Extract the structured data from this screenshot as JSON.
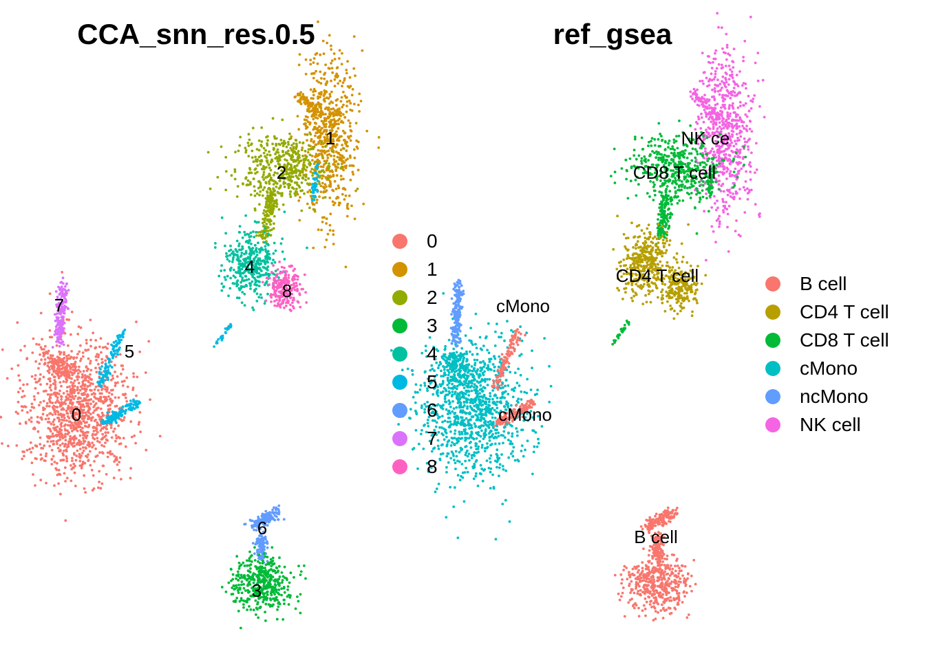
{
  "panels": [
    {
      "title": "CCA_snn_res.0.5"
    },
    {
      "title": "ref_gsea"
    }
  ],
  "legend_left": {
    "items": [
      {
        "label": "0",
        "color": "#F8766D"
      },
      {
        "label": "1",
        "color": "#D39200"
      },
      {
        "label": "2",
        "color": "#93AA00"
      },
      {
        "label": "3",
        "color": "#00BA38"
      },
      {
        "label": "4",
        "color": "#00C19F"
      },
      {
        "label": "5",
        "color": "#00B9E3"
      },
      {
        "label": "6",
        "color": "#619CFF"
      },
      {
        "label": "7",
        "color": "#DB72FB"
      },
      {
        "label": "8",
        "color": "#FF61C3"
      }
    ]
  },
  "legend_right": {
    "items": [
      {
        "label": "B cell",
        "color": "#F8766D"
      },
      {
        "label": "CD4 T cell",
        "color": "#B79F00"
      },
      {
        "label": "CD8 T cell",
        "color": "#00BA38"
      },
      {
        "label": "cMono",
        "color": "#00BFC4"
      },
      {
        "label": "ncMono",
        "color": "#619CFF"
      },
      {
        "label": "NK cell",
        "color": "#F564E3"
      }
    ]
  },
  "chart_data": [
    {
      "type": "scatter",
      "title": "CCA_snn_res.0.5",
      "xlabel": "",
      "ylabel": "",
      "grid": false,
      "axes": false,
      "legend": "right",
      "cluster_labels": [
        "7",
        "5",
        "0",
        "1",
        "2",
        "4",
        "8",
        "6",
        "3"
      ]
    },
    {
      "type": "scatter",
      "title": "ref_gsea",
      "xlabel": "",
      "ylabel": "",
      "grid": false,
      "axes": false,
      "legend": "right",
      "cluster_labels": [
        "NK ce",
        "CD8 T cell",
        "CD4 T cell",
        "cMono",
        "cMono",
        "B cell"
      ]
    }
  ]
}
